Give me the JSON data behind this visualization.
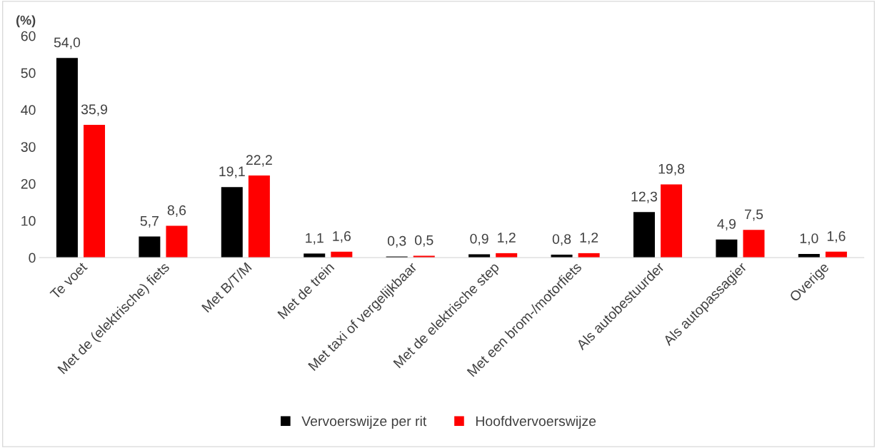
{
  "chart_data": {
    "type": "bar",
    "ylabel": "(%)",
    "categories": [
      "Te voet",
      "Met de (elektrische) fiets",
      "Met B/T/M",
      "Met de trein",
      "Met taxi of vergelijkbaar",
      "Met de elektrische step",
      "Met een brom-/motorfiets",
      "Als autobestuurder",
      "Als autopassagier",
      "Overige"
    ],
    "series": [
      {
        "name": "Vervoerswijze per rit",
        "color": "#000000",
        "values": [
          54.0,
          5.7,
          19.1,
          1.1,
          0.3,
          0.9,
          0.8,
          12.3,
          4.9,
          1.0
        ],
        "value_labels": [
          "54,0",
          "5,7",
          "19,1",
          "1,1",
          "0,3",
          "0,9",
          "0,8",
          "12,3",
          "4,9",
          "1,0"
        ]
      },
      {
        "name": "Hoofdvervoerswijze",
        "color": "#ff0000",
        "values": [
          35.9,
          8.6,
          22.2,
          1.6,
          0.5,
          1.2,
          1.2,
          19.8,
          7.5,
          1.6
        ],
        "value_labels": [
          "35,9",
          "8,6",
          "22,2",
          "1,6",
          "0,5",
          "1,2",
          "1,2",
          "19,8",
          "7,5",
          "1,6"
        ]
      }
    ],
    "ylim": [
      0,
      60
    ],
    "yticks": [
      0,
      10,
      20,
      30,
      40,
      50,
      60
    ],
    "grid": false,
    "legend": "bottom"
  }
}
